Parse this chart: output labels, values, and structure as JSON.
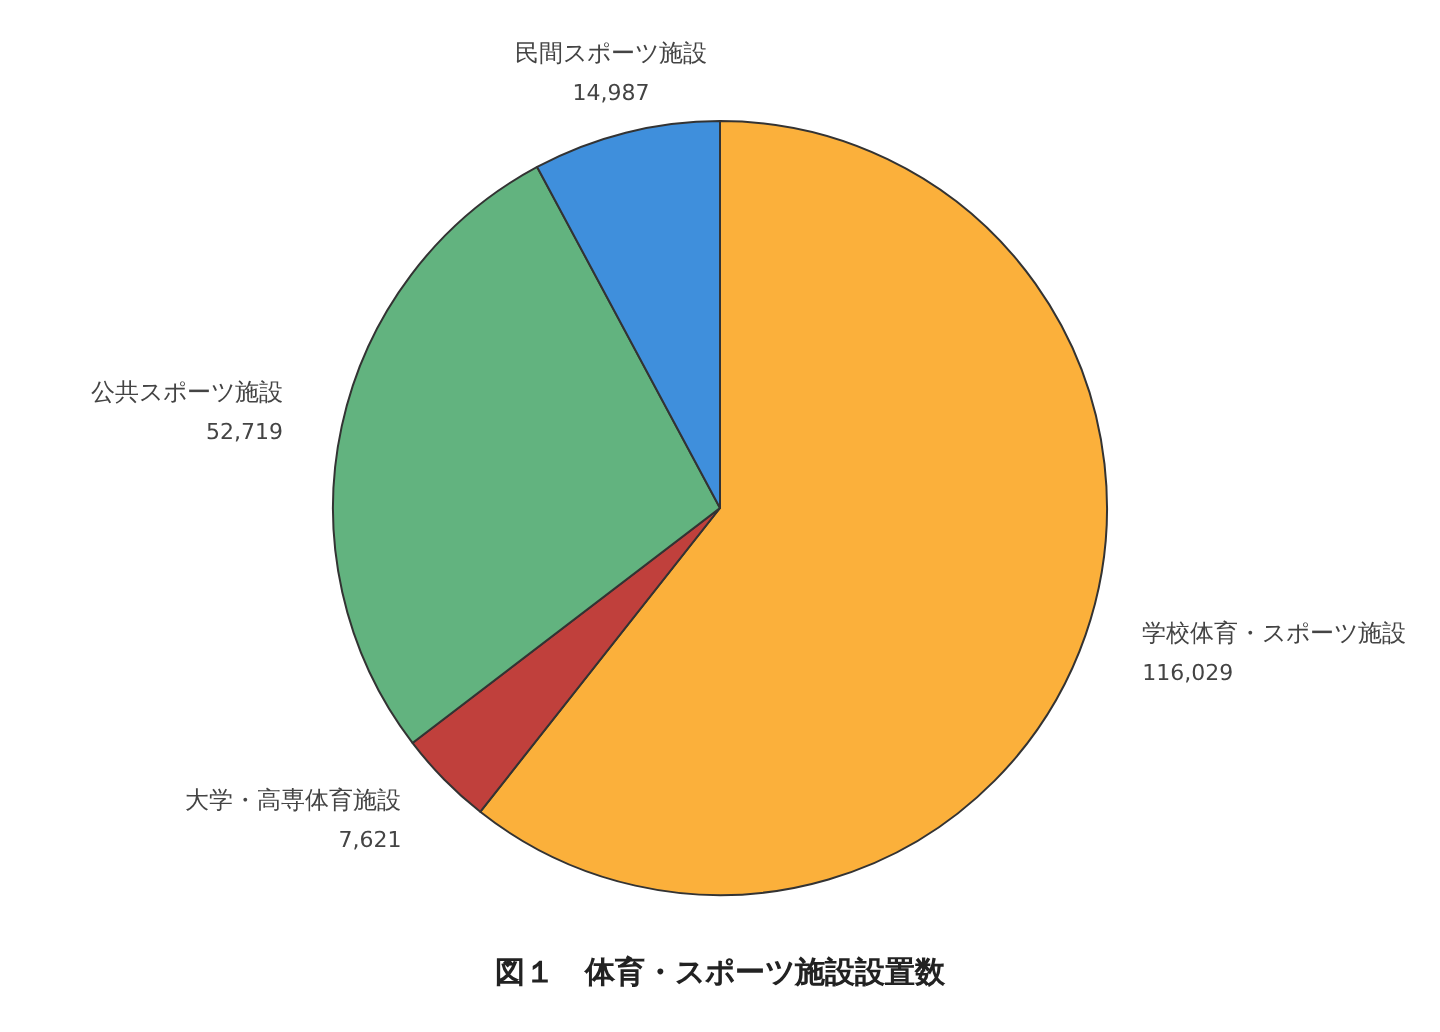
{
  "chart_data": {
    "type": "pie",
    "title": "図１　体育・スポーツ施設設置数",
    "categories": [
      "学校体育・スポーツ施設",
      "大学・高専体育施設",
      "公共スポーツ施設",
      "民間スポーツ施設"
    ],
    "values": [
      116029,
      7621,
      52719,
      14987
    ],
    "value_labels": [
      "116,029",
      "7,621",
      "52,719",
      "14,987"
    ],
    "colors": [
      "#fbb03b",
      "#c0403c",
      "#62b37f",
      "#3f8fdc"
    ],
    "legend": false
  }
}
